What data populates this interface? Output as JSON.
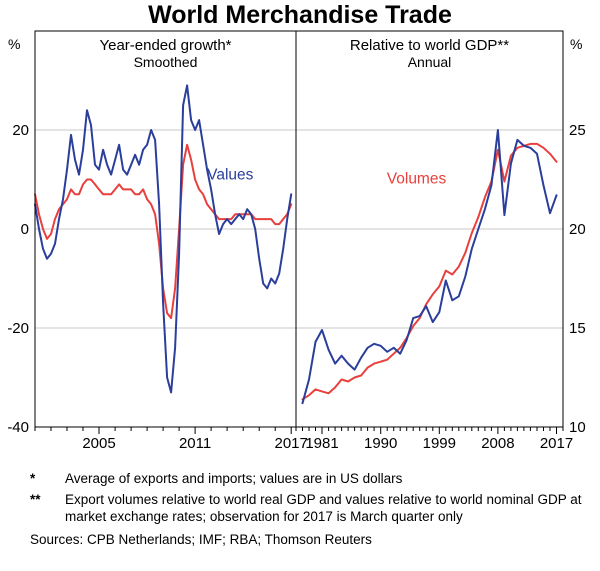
{
  "title": "World Merchandise Trade",
  "colors": {
    "grid": "#c9c9c9",
    "axis": "#000000",
    "values": "#2a3e9b",
    "volumes": "#e8403d"
  },
  "chart_data": [
    {
      "type": "line",
      "panel": "left",
      "title": "Year-ended growth*",
      "subtitle": "Smoothed",
      "unit": "%",
      "ylim": [
        -40,
        40
      ],
      "yticks": [
        -40,
        -20,
        0,
        20
      ],
      "xlim": [
        2001,
        2017.3
      ],
      "xticks": [
        2005,
        2011,
        2017
      ],
      "grid": true,
      "series": [
        {
          "name": "Volumes",
          "color": "#e8403d",
          "x_start": 2001,
          "x_step": 0.25,
          "values": [
            7,
            3,
            0,
            -2,
            -1,
            2,
            4,
            5,
            6,
            8,
            7,
            7,
            9,
            10,
            10,
            9,
            8,
            7,
            7,
            7,
            8,
            9,
            8,
            8,
            8,
            7,
            7,
            8,
            6,
            5,
            3,
            -3,
            -12,
            -17,
            -18,
            -12,
            0,
            13,
            17,
            14,
            10,
            8,
            7,
            5,
            4,
            3,
            2,
            2,
            2,
            2,
            3,
            3,
            3,
            3,
            3,
            2,
            2,
            2,
            2,
            2,
            1,
            1,
            2,
            3,
            5
          ]
        },
        {
          "name": "Values",
          "label": "Values",
          "label_pos": [
            2013.2,
            10
          ],
          "color": "#2a3e9b",
          "x_start": 2001,
          "x_step": 0.25,
          "values": [
            5,
            0,
            -4,
            -6,
            -5,
            -3,
            2,
            6,
            12,
            19,
            14,
            11,
            16,
            24,
            21,
            13,
            12,
            16,
            13,
            11,
            14,
            17,
            12,
            11,
            13,
            15,
            13,
            16,
            17,
            20,
            18,
            5,
            -15,
            -30,
            -33,
            -24,
            -5,
            25,
            29,
            22,
            20,
            22,
            17,
            12,
            8,
            3,
            -1,
            1,
            2,
            1,
            2,
            3,
            2,
            4,
            3,
            0,
            -6,
            -11,
            -12,
            -10,
            -11,
            -9,
            -4,
            2,
            7
          ]
        }
      ]
    },
    {
      "type": "line",
      "panel": "right",
      "title": "Relative to world GDP**",
      "subtitle": "Annual",
      "unit": "%",
      "ylim": [
        10,
        30
      ],
      "yticks": [
        10,
        15,
        20,
        25
      ],
      "xlim": [
        1977,
        2018
      ],
      "xticks": [
        1981,
        1990,
        1999,
        2008,
        2017
      ],
      "grid": true,
      "series": [
        {
          "name": "Volumes",
          "label": "Volumes",
          "label_pos": [
            1995.5,
            22.3
          ],
          "color": "#e8403d",
          "x_start": 1978,
          "x_step": 1,
          "values": [
            11.4,
            11.6,
            11.9,
            11.8,
            11.7,
            12.0,
            12.4,
            12.3,
            12.5,
            12.6,
            13.0,
            13.2,
            13.3,
            13.4,
            13.7,
            14.0,
            14.5,
            15.1,
            15.5,
            16.2,
            16.7,
            17.1,
            17.9,
            17.7,
            18.1,
            18.8,
            19.8,
            20.6,
            21.6,
            22.4,
            24.0,
            22.4,
            23.7,
            24.1,
            24.2,
            24.3,
            24.3,
            24.1,
            23.8,
            23.4
          ]
        },
        {
          "name": "Values",
          "color": "#2a3e9b",
          "x_start": 1978,
          "x_step": 1,
          "values": [
            11.2,
            12.4,
            14.3,
            14.9,
            13.9,
            13.2,
            13.6,
            13.2,
            12.9,
            13.5,
            14.0,
            14.2,
            14.1,
            13.8,
            14.0,
            13.7,
            14.4,
            15.5,
            15.6,
            16.1,
            15.3,
            15.8,
            17.4,
            16.4,
            16.6,
            17.6,
            19.0,
            20.0,
            21.0,
            22.2,
            25.0,
            20.7,
            23.3,
            24.5,
            24.2,
            24.1,
            23.8,
            22.2,
            20.8,
            21.7
          ]
        }
      ]
    }
  ],
  "footnotes": [
    {
      "marker": "*",
      "text": "Average of exports and imports; values are in US dollars"
    },
    {
      "marker": "**",
      "text": "Export volumes relative to world real GDP and values relative to world nominal GDP at market exchange rates; observation for 2017 is March quarter only"
    }
  ],
  "sources": "Sources: CPB Netherlands; IMF; RBA; Thomson Reuters"
}
